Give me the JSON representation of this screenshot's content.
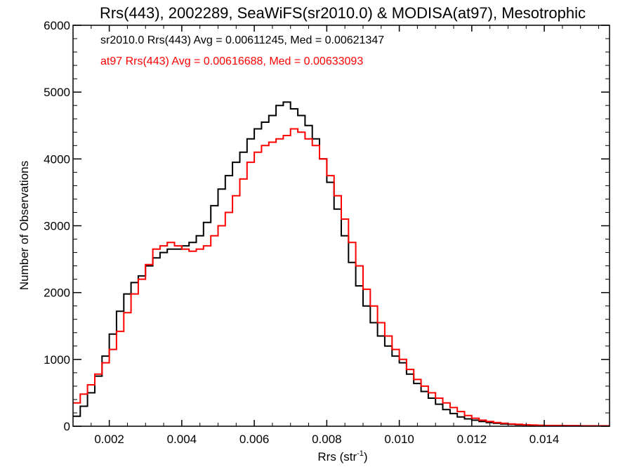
{
  "chart_data": {
    "type": "line",
    "style": "histogram-step",
    "title": "Rrs(443), 2002289, SeaWiFS(sr2010.0) & MODISA(at97), Mesotrophic",
    "xlabel_base": "Rrs (str",
    "xlabel_sup": "-1",
    "xlabel_close": ")",
    "ylabel": "Number of Observations",
    "xlim": [
      0.001,
      0.0158
    ],
    "ylim": [
      0,
      6000
    ],
    "x_ticks": [
      0.002,
      0.004,
      0.006,
      0.008,
      0.01,
      0.012,
      0.014
    ],
    "x_tick_labels": [
      "0.002",
      "0.004",
      "0.006",
      "0.008",
      "0.010",
      "0.012",
      "0.014"
    ],
    "y_ticks": [
      0,
      1000,
      2000,
      3000,
      4000,
      5000,
      6000
    ],
    "y_tick_labels": [
      "0",
      "1000",
      "2000",
      "3000",
      "4000",
      "5000",
      "6000"
    ],
    "grid": false,
    "annotations": [
      {
        "text": "sr2010.0 Rrs(443) Avg = 0.00611245, Med = 0.00621347",
        "color": "#000000"
      },
      {
        "text": "at97 Rrs(443) Avg = 0.00616688, Med = 0.00633093",
        "color": "#ff0000"
      }
    ],
    "series": [
      {
        "name": "sr2010.0",
        "color": "#000000",
        "x": [
          0.001,
          0.0012,
          0.0014,
          0.0016,
          0.0018,
          0.002,
          0.0022,
          0.0024,
          0.0026,
          0.0028,
          0.003,
          0.0032,
          0.0034,
          0.0036,
          0.0038,
          0.004,
          0.0042,
          0.0044,
          0.0046,
          0.0048,
          0.005,
          0.0052,
          0.0054,
          0.0056,
          0.0058,
          0.006,
          0.0062,
          0.0064,
          0.0066,
          0.0068,
          0.007,
          0.0072,
          0.0074,
          0.0076,
          0.0078,
          0.008,
          0.0082,
          0.0084,
          0.0086,
          0.0088,
          0.009,
          0.0092,
          0.0094,
          0.0096,
          0.0098,
          0.01,
          0.0102,
          0.0104,
          0.0106,
          0.0108,
          0.011,
          0.0112,
          0.0114,
          0.0116,
          0.0118,
          0.012,
          0.0122,
          0.0124,
          0.0126,
          0.0128,
          0.013,
          0.0132,
          0.0134,
          0.0136,
          0.0138,
          0.014,
          0.0145,
          0.015,
          0.0158
        ],
        "y": [
          150,
          300,
          500,
          750,
          1050,
          1380,
          1720,
          1980,
          2150,
          2250,
          2400,
          2520,
          2600,
          2650,
          2650,
          2700,
          2750,
          2850,
          3050,
          3300,
          3550,
          3750,
          3950,
          4100,
          4300,
          4450,
          4550,
          4650,
          4800,
          4850,
          4750,
          4650,
          4500,
          4300,
          4000,
          3650,
          3250,
          2850,
          2450,
          2100,
          1800,
          1550,
          1350,
          1200,
          1050,
          950,
          780,
          640,
          520,
          420,
          330,
          250,
          190,
          140,
          110,
          90,
          70,
          55,
          45,
          35,
          28,
          22,
          18,
          15,
          12,
          10,
          7,
          5,
          5
        ]
      },
      {
        "name": "at97",
        "color": "#ff0000",
        "x": [
          0.001,
          0.0012,
          0.0014,
          0.0016,
          0.0018,
          0.002,
          0.0022,
          0.0024,
          0.0026,
          0.0028,
          0.003,
          0.0032,
          0.0034,
          0.0036,
          0.0038,
          0.004,
          0.0042,
          0.0044,
          0.0046,
          0.0048,
          0.005,
          0.0052,
          0.0054,
          0.0056,
          0.0058,
          0.006,
          0.0062,
          0.0064,
          0.0066,
          0.0068,
          0.007,
          0.0072,
          0.0074,
          0.0076,
          0.0078,
          0.008,
          0.0082,
          0.0084,
          0.0086,
          0.0088,
          0.009,
          0.0092,
          0.0094,
          0.0096,
          0.0098,
          0.01,
          0.0102,
          0.0104,
          0.0106,
          0.0108,
          0.011,
          0.0112,
          0.0114,
          0.0116,
          0.0118,
          0.012,
          0.0122,
          0.0124,
          0.0126,
          0.0128,
          0.013,
          0.0132,
          0.0134,
          0.0136,
          0.0138,
          0.014,
          0.0145,
          0.015,
          0.0158
        ],
        "y": [
          350,
          480,
          620,
          780,
          950,
          1150,
          1420,
          1700,
          1980,
          2200,
          2420,
          2650,
          2700,
          2750,
          2700,
          2650,
          2620,
          2650,
          2700,
          2850,
          3000,
          3200,
          3450,
          3700,
          3950,
          4100,
          4200,
          4250,
          4300,
          4350,
          4450,
          4400,
          4300,
          4200,
          4000,
          3750,
          3450,
          3100,
          2750,
          2400,
          2050,
          1800,
          1550,
          1350,
          1150,
          1000,
          850,
          700,
          600,
          500,
          420,
          350,
          280,
          220,
          160,
          120,
          90,
          70,
          55,
          45,
          35,
          28,
          22,
          18,
          15,
          12,
          9,
          6,
          5
        ]
      }
    ]
  }
}
